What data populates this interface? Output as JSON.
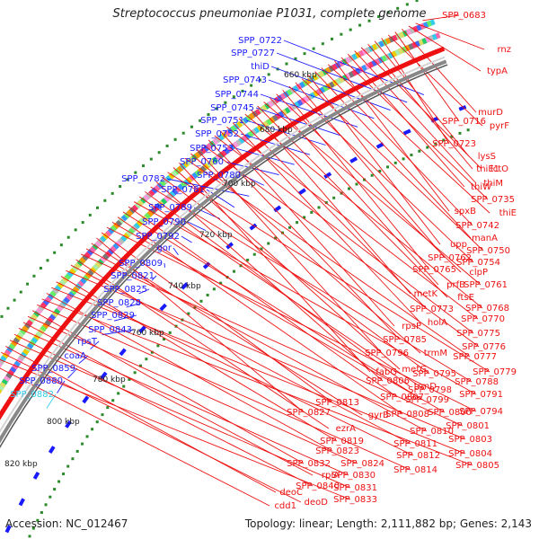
{
  "title": "Streptococcus pneumoniae P1031, complete genome",
  "accession": "Accession: NC_012467",
  "topology": "Topology: linear; Length: 2,111,882 bp; Genes: 2,143",
  "colors": {
    "left_label": "#1a1aff",
    "right_label": "#ee1111",
    "highlight": "#33ccee",
    "tick": "#2a8a2a",
    "backbone": "#888888"
  },
  "kbp_labels": [
    "660 kbp",
    "680 kbp",
    "700 kbp",
    "720 kbp",
    "740 kbp",
    "760 kbp",
    "780 kbp",
    "800 kbp",
    "820 kbp"
  ],
  "left_labels": [
    "SPP_0722",
    "SPP_0727",
    "thiD",
    "SPP_0743",
    "SPP_0744",
    "SPP_0745",
    "SPP_0751",
    "SPP_0752",
    "SPP_0753",
    "SPP_0760",
    "SPP_0780",
    "SPP_0782",
    "SPP_0781",
    "SPP_0789",
    "SPP_0790",
    "SPP_0792",
    "gor",
    "SPP_0809",
    "SPP_0821",
    "SPP_0825",
    "SPP_0828",
    "SPP_0829",
    "SPP_0843",
    "rpsT",
    "coaA",
    "SPP_0859",
    "SPP_0880",
    "SPP_0882"
  ],
  "right_labels": [
    "SPP_0683",
    "rnz",
    "typA",
    "murD",
    "SPP_0716",
    "pyrF",
    "SPP_0723",
    "lysS",
    "thiE1",
    "lctO",
    "thiM",
    "thiW",
    "SPP_0735",
    "spxB",
    "thiE",
    "SPP_0742",
    "manA",
    "upp",
    "SPP_0750",
    "SPP_0762",
    "SPP_0754",
    "SPP_0765",
    "clpP",
    "prfB",
    "SPP_0761",
    "ftsE",
    "metK",
    "SPP_0768",
    "SPP_0773",
    "holA",
    "SPP_0770",
    "rpsP",
    "SPP_0775",
    "SPP_0785",
    "SPP_0776",
    "SPP_0796",
    "trmM",
    "SPP_0777",
    "fabG",
    "metG",
    "SPP_0779",
    "SPP_0795",
    "SPP_0806",
    "SPP_0788",
    "trmD",
    "SPP_0798",
    "SPP_0791",
    "SPP_0807",
    "SPP_0799",
    "SPP_0808",
    "SPP_0800",
    "SPP_0794",
    "SPP_0813",
    "SPP_0827",
    "gyrB",
    "SPP_0810",
    "SPP_0801",
    "ezrA",
    "SPP_0811",
    "SPP_0803",
    "SPP_0819",
    "SPP_0812",
    "SPP_0804",
    "SPP_0823",
    "SPP_0805",
    "SPP_0814",
    "SPP_0832",
    "SPP_0824",
    "rpiA",
    "SPP_0830",
    "SPP_0840",
    "SPP_0831",
    "deoC",
    "deoD",
    "SPP_0833",
    "cdd1"
  ]
}
